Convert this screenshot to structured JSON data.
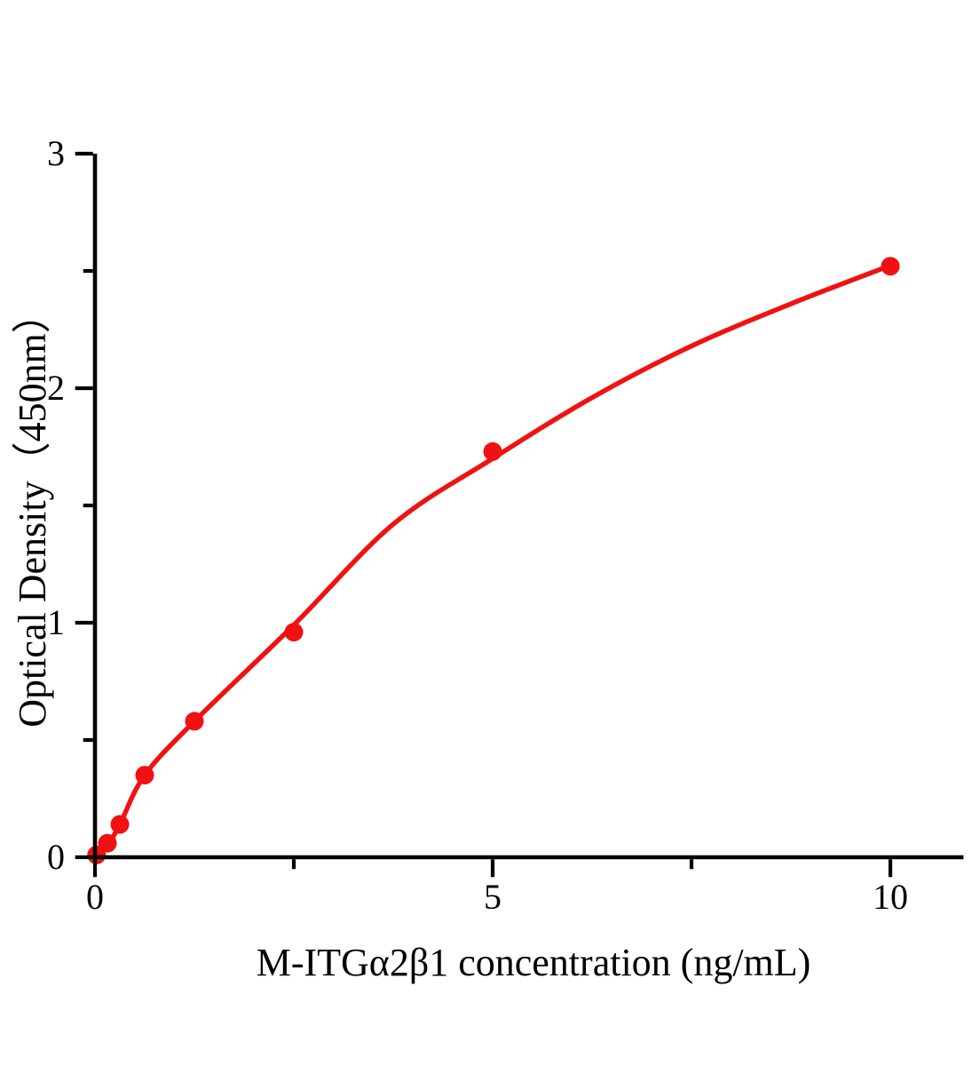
{
  "chart_data": {
    "type": "scatter",
    "title": "",
    "xlabel": "M-ITGα2β1 concentration (ng/mL)",
    "ylabel": "Optical Density（450nm）",
    "xlim": [
      0,
      10.92
    ],
    "ylim": [
      0,
      3
    ],
    "grid": false,
    "legend": null,
    "axis_color": "#000000",
    "accent_color": "#f01212",
    "x_ticks": {
      "major": [
        0,
        5,
        10
      ],
      "minor": [
        2.5,
        7.5
      ],
      "labels": [
        "0",
        "5",
        "10"
      ]
    },
    "y_ticks": {
      "major": [
        0,
        1,
        2,
        3
      ],
      "minor": [
        0.5,
        1.5,
        2.5
      ],
      "labels": [
        "0",
        "1",
        "2",
        "3"
      ]
    },
    "series": [
      {
        "name": "standard-points",
        "kind": "scatter",
        "color": "#f01212",
        "points": [
          {
            "x": 0.02,
            "od": 0.01
          },
          {
            "x": 0.156,
            "od": 0.06
          },
          {
            "x": 0.313,
            "od": 0.14
          },
          {
            "x": 0.625,
            "od": 0.35
          },
          {
            "x": 1.25,
            "od": 0.58
          },
          {
            "x": 2.5,
            "od": 0.96
          },
          {
            "x": 5,
            "od": 1.73
          },
          {
            "x": 10,
            "od": 2.52
          }
        ]
      },
      {
        "name": "fit-curve",
        "kind": "line",
        "color": "#f01212",
        "points": [
          [
            0,
            0
          ],
          [
            0.156,
            0.05
          ],
          [
            0.313,
            0.14
          ],
          [
            0.625,
            0.35
          ],
          [
            1.25,
            0.58
          ],
          [
            2.5,
            0.99
          ],
          [
            3.75,
            1.42
          ],
          [
            5,
            1.7
          ],
          [
            6.25,
            1.96
          ],
          [
            7.5,
            2.18
          ],
          [
            8.75,
            2.36
          ],
          [
            10,
            2.523
          ]
        ]
      }
    ]
  }
}
